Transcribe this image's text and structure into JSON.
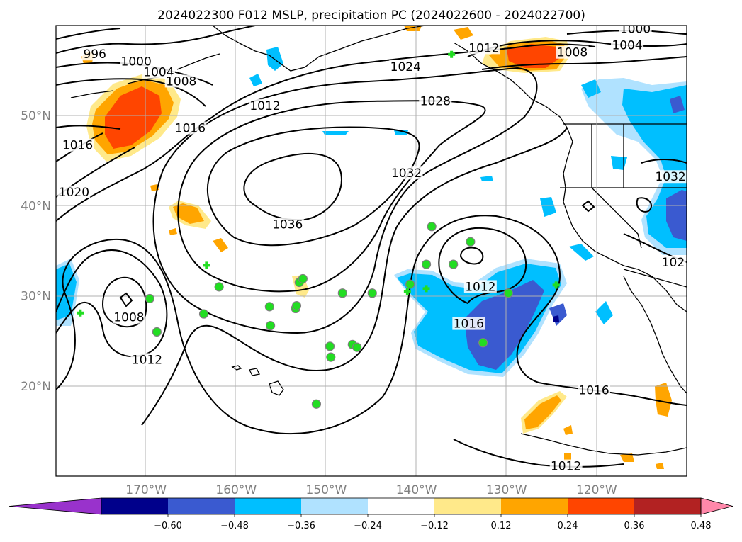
{
  "chart_data": {
    "type": "contour map",
    "title": "2024022300 F012 MSLP, precipitation PC (2024022600 - 2024022700)",
    "lon_range": [
      -180,
      -110
    ],
    "lat_range": [
      10,
      60
    ],
    "grid": true,
    "x_ticks": [
      {
        "value": -170,
        "label": "170°W"
      },
      {
        "value": -160,
        "label": "160°W"
      },
      {
        "value": -150,
        "label": "150°W"
      },
      {
        "value": -140,
        "label": "140°W"
      },
      {
        "value": -130,
        "label": "130°W"
      },
      {
        "value": -120,
        "label": "120°W"
      }
    ],
    "y_ticks": [
      {
        "value": 20,
        "label": "20°N"
      },
      {
        "value": 30,
        "label": "30°N"
      },
      {
        "value": 40,
        "label": "40°N"
      },
      {
        "value": 50,
        "label": "50°N"
      }
    ],
    "colorbar": {
      "extend": "both",
      "levels": [
        -0.6,
        -0.48,
        -0.36,
        -0.24,
        -0.12,
        0.12,
        0.24,
        0.36,
        0.48,
        0.6
      ],
      "tick_labels": [
        "−0.60",
        "−0.48",
        "−0.36",
        "−0.24",
        "−0.12",
        "0.12",
        "0.24",
        "0.36",
        "0.48",
        "0.60"
      ],
      "colors": [
        "#9932cc",
        "#00008b",
        "#3a5ad0",
        "#00bfff",
        "#b0e2ff",
        "#ffffff",
        "#ffe98a",
        "#ffa500",
        "#ff4500",
        "#b22222",
        "#ff88aa"
      ]
    },
    "isobar_labels": [
      {
        "text": "996",
        "lon": -175.7,
        "lat": 56.6
      },
      {
        "text": "1000",
        "lon": -171.1,
        "lat": 55.8
      },
      {
        "text": "1004",
        "lon": -168.6,
        "lat": 54.6
      },
      {
        "text": "1008",
        "lon": -166.1,
        "lat": 53.6
      },
      {
        "text": "1012",
        "lon": -156.8,
        "lat": 50.9
      },
      {
        "text": "1016",
        "lon": -165.1,
        "lat": 48.4
      },
      {
        "text": "1016",
        "lon": -177.6,
        "lat": 46.5
      },
      {
        "text": "1020",
        "lon": -178.0,
        "lat": 41.3
      },
      {
        "text": "1024",
        "lon": -141.2,
        "lat": 55.2
      },
      {
        "text": "1028",
        "lon": -137.9,
        "lat": 51.4
      },
      {
        "text": "1032",
        "lon": -141.1,
        "lat": 43.4
      },
      {
        "text": "1036",
        "lon": -154.3,
        "lat": 37.7
      },
      {
        "text": "1008",
        "lon": -171.9,
        "lat": 27.4
      },
      {
        "text": "1012",
        "lon": -169.9,
        "lat": 22.7
      },
      {
        "text": "1012",
        "lon": -132.9,
        "lat": 30.8
      },
      {
        "text": "1016",
        "lon": -134.2,
        "lat": 26.7
      },
      {
        "text": "1000",
        "lon": -115.7,
        "lat": 59.4
      },
      {
        "text": "1004",
        "lon": -116.6,
        "lat": 57.6
      },
      {
        "text": "1008",
        "lon": -122.7,
        "lat": 56.8
      },
      {
        "text": "1012",
        "lon": -132.5,
        "lat": 57.3
      },
      {
        "text": "1032",
        "lon": -111.8,
        "lat": 43.0
      },
      {
        "text": "102",
        "lon": -111.5,
        "lat": 33.5
      },
      {
        "text": "1016",
        "lon": -120.3,
        "lat": 19.3
      },
      {
        "text": "1012",
        "lon": -123.4,
        "lat": 10.9
      }
    ],
    "markers": [
      {
        "kind": "dot",
        "lon": -169.6,
        "lat": 29.7
      },
      {
        "kind": "dot",
        "lon": -168.8,
        "lat": 26.0
      },
      {
        "kind": "dot",
        "lon": -163.6,
        "lat": 28.0
      },
      {
        "kind": "dot",
        "lon": -161.9,
        "lat": 31.0
      },
      {
        "kind": "dot",
        "lon": -156.3,
        "lat": 28.8
      },
      {
        "kind": "dot",
        "lon": -156.2,
        "lat": 26.7
      },
      {
        "kind": "dot",
        "lon": -153.4,
        "lat": 28.6
      },
      {
        "kind": "dot",
        "lon": -153.3,
        "lat": 28.9
      },
      {
        "kind": "dot",
        "lon": -153.0,
        "lat": 31.5
      },
      {
        "kind": "dot",
        "lon": -152.6,
        "lat": 31.9
      },
      {
        "kind": "dot",
        "lon": -149.6,
        "lat": 24.4
      },
      {
        "kind": "dot",
        "lon": -149.5,
        "lat": 23.2
      },
      {
        "kind": "dot",
        "lon": -148.2,
        "lat": 30.3
      },
      {
        "kind": "dot",
        "lon": -147.1,
        "lat": 24.6
      },
      {
        "kind": "dot",
        "lon": -146.6,
        "lat": 24.3
      },
      {
        "kind": "dot",
        "lon": -144.9,
        "lat": 30.3
      },
      {
        "kind": "dot",
        "lon": -140.7,
        "lat": 31.3
      },
      {
        "kind": "dot",
        "lon": -138.9,
        "lat": 33.5
      },
      {
        "kind": "dot",
        "lon": -138.3,
        "lat": 37.7
      },
      {
        "kind": "dot",
        "lon": -135.9,
        "lat": 33.5
      },
      {
        "kind": "dot",
        "lon": -134.0,
        "lat": 36.0
      },
      {
        "kind": "dot",
        "lon": -132.6,
        "lat": 24.8
      },
      {
        "kind": "dot",
        "lon": -129.8,
        "lat": 30.3
      },
      {
        "kind": "dot",
        "lon": -151.1,
        "lat": 18.0
      },
      {
        "kind": "cross",
        "lon": -177.3,
        "lat": 28.1
      },
      {
        "kind": "cross",
        "lon": -163.3,
        "lat": 33.4
      },
      {
        "kind": "cross",
        "lon": -141.0,
        "lat": 30.5
      },
      {
        "kind": "cross",
        "lon": -138.9,
        "lat": 30.8
      },
      {
        "kind": "cross",
        "lon": -124.5,
        "lat": 31.2
      },
      {
        "kind": "cross",
        "lon": -136.1,
        "lat": 56.8
      }
    ],
    "marker_colors": {
      "fill": "#22dd22",
      "edge": "#808080"
    }
  }
}
